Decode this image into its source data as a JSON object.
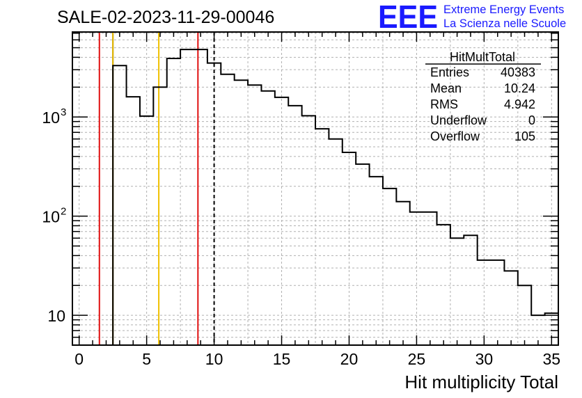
{
  "header": {
    "run_title": "SALE-02-2023-11-29-00046",
    "logo_text": "EEE",
    "logo_line1": "Extreme Energy Events",
    "logo_line2": "La Scienza nelle Scuole",
    "logo_color": "#1a1aff"
  },
  "stats_box": {
    "name": "HitMultTotal",
    "rows": [
      {
        "label": "Entries",
        "value": "40383"
      },
      {
        "label": "Mean",
        "value": "10.24"
      },
      {
        "label": "RMS",
        "value": "4.942"
      },
      {
        "label": "Underflow",
        "value": "0"
      },
      {
        "label": "Overflow",
        "value": "105"
      }
    ]
  },
  "chart_data": {
    "type": "histogram",
    "xlabel": "Hit multiplicity Total",
    "ylabel": "",
    "x_range": [
      -0.5,
      35.5
    ],
    "y_range": [
      5,
      7200
    ],
    "y_scale": "log",
    "grid": true,
    "bin_width": 1,
    "x_ticks": [
      0,
      5,
      10,
      15,
      20,
      25,
      30,
      35
    ],
    "x_tick_labels": [
      "0",
      "5",
      "10",
      "15",
      "20",
      "25",
      "30",
      "35"
    ],
    "y_ticks": [
      10,
      100,
      1000
    ],
    "y_tick_labels": [
      "10",
      "10",
      "10"
    ],
    "y_tick_exponents": [
      "",
      "2",
      "3"
    ],
    "bins": [
      {
        "x": 3,
        "count": 3300
      },
      {
        "x": 4,
        "count": 1600
      },
      {
        "x": 5,
        "count": 1020
      },
      {
        "x": 6,
        "count": 2000
      },
      {
        "x": 7,
        "count": 3900
      },
      {
        "x": 8,
        "count": 4800
      },
      {
        "x": 9,
        "count": 4800
      },
      {
        "x": 10,
        "count": 3500
      },
      {
        "x": 11,
        "count": 2700
      },
      {
        "x": 12,
        "count": 2350
      },
      {
        "x": 13,
        "count": 2100
      },
      {
        "x": 14,
        "count": 1830
      },
      {
        "x": 15,
        "count": 1580
      },
      {
        "x": 16,
        "count": 1300
      },
      {
        "x": 17,
        "count": 1030
      },
      {
        "x": 18,
        "count": 760
      },
      {
        "x": 19,
        "count": 600
      },
      {
        "x": 20,
        "count": 440
      },
      {
        "x": 21,
        "count": 335
      },
      {
        "x": 22,
        "count": 250
      },
      {
        "x": 23,
        "count": 190
      },
      {
        "x": 24,
        "count": 140
      },
      {
        "x": 25,
        "count": 110
      },
      {
        "x": 26,
        "count": 110
      },
      {
        "x": 27,
        "count": 82
      },
      {
        "x": 28,
        "count": 60
      },
      {
        "x": 29,
        "count": 64
      },
      {
        "x": 30,
        "count": 36
      },
      {
        "x": 31,
        "count": 36
      },
      {
        "x": 32,
        "count": 28
      },
      {
        "x": 33,
        "count": 20
      },
      {
        "x": 34,
        "count": 10
      },
      {
        "x": 35,
        "count": 10.5
      }
    ],
    "vertical_lines": [
      {
        "x": 1.5,
        "color": "#e01010",
        "style": "solid"
      },
      {
        "x": 2.5,
        "color": "#000000",
        "style": "solid"
      },
      {
        "x": 2.5,
        "color": "#f0c000",
        "style": "solid"
      },
      {
        "x": 5.9,
        "color": "#f0c000",
        "style": "solid"
      },
      {
        "x": 8.8,
        "color": "#e01010",
        "style": "solid"
      },
      {
        "x": 10.0,
        "color": "#000000",
        "style": "dashed"
      }
    ]
  }
}
